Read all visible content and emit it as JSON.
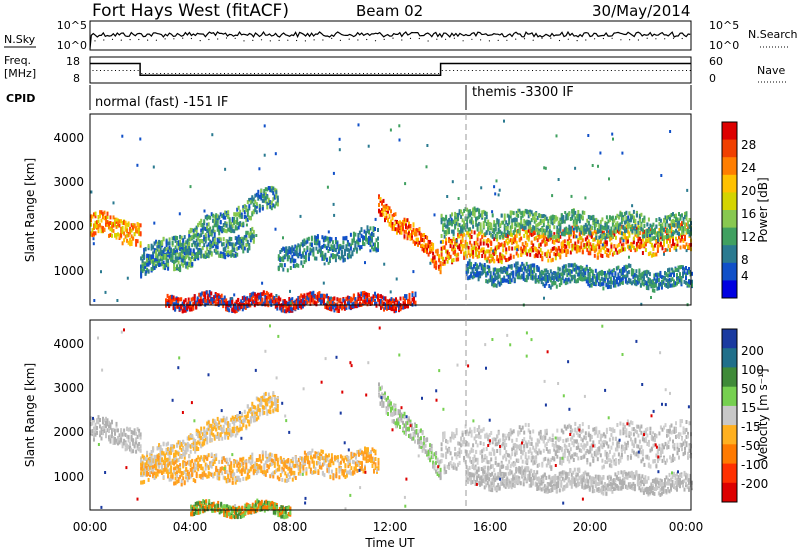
{
  "header": {
    "station": "Fort Hays West (fitACF)",
    "beam": "Beam 02",
    "date": "30/May/2014"
  },
  "top_panels": {
    "nsky_label": "N.Sky",
    "nsearch_label": "N.Search",
    "nsky_ticks": [
      "10^5",
      "10^0"
    ],
    "freq_label_1": "Freq.",
    "freq_label_2": "[MHz]",
    "freq_ticks": [
      "18",
      "8"
    ],
    "nave_label": "Nave",
    "nave_ticks": [
      "60",
      "0"
    ],
    "cpid_label": "CPID",
    "cpid_modes": [
      {
        "label": "normal (fast) -151 IF",
        "start_hour": 0
      },
      {
        "label": "themis -3300 IF",
        "start_hour": 15.05
      }
    ],
    "freq_data": {
      "x_hours": [
        0,
        2.0,
        2.0,
        14.0,
        14.0,
        24
      ],
      "y_mhz": [
        15.5,
        15.5,
        11,
        11,
        15.5,
        15.5
      ]
    }
  },
  "chart_data": [
    {
      "type": "heatmap",
      "title": "Power",
      "colorbar_label": "Power [dB]",
      "colorbar_ticks": [
        "28",
        "24",
        "20",
        "16",
        "12",
        "8",
        "4"
      ],
      "colorbar_colors": [
        "#dd0000",
        "#f04000",
        "#ff7e00",
        "#ffc100",
        "#d4d400",
        "#88c850",
        "#40a060",
        "#2a7a90",
        "#1050c8",
        "#0000e0"
      ],
      "ylabel": "Slant Range [km]",
      "yticks": [
        "4000",
        "3000",
        "2000",
        "1000"
      ],
      "ylim": [
        180,
        4500
      ],
      "xlim_hours": [
        0,
        24
      ],
      "color_scale_db": [
        0,
        30
      ]
    },
    {
      "type": "heatmap",
      "title": "Velocity",
      "colorbar_label": "Velocity [m s⁻¹]",
      "colorbar_ticks": [
        "200",
        "100",
        "50",
        "15",
        "-15",
        "-50",
        "-100",
        "-200"
      ],
      "colorbar_colors": [
        "#1a3aa0",
        "#206f8a",
        "#3f8a38",
        "#76d050",
        "#c8c8c8",
        "#ffb020",
        "#ff7a00",
        "#ff3000",
        "#dd0000"
      ],
      "ylabel": "Slant Range [km]",
      "yticks": [
        "4000",
        "3000",
        "2000",
        "1000"
      ],
      "ylim": [
        180,
        4500
      ],
      "xlim_hours": [
        0,
        24
      ],
      "xlabel": "Time UT",
      "xticks": [
        "00:00",
        "04:00",
        "08:00",
        "12:00",
        "16:00",
        "20:00",
        "00:00"
      ]
    }
  ]
}
